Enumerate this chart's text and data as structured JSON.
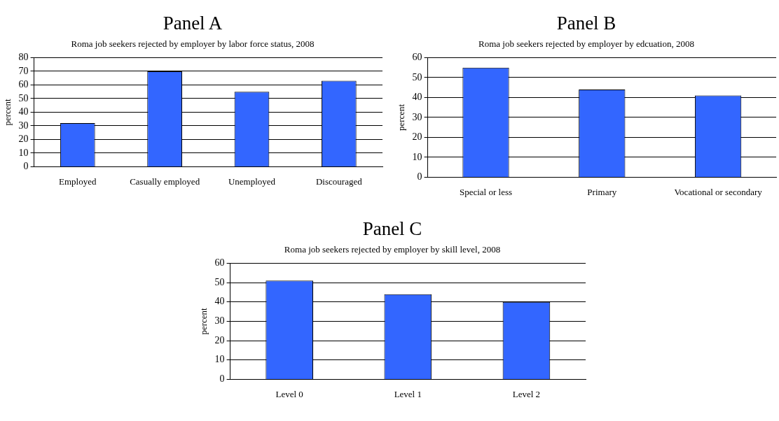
{
  "chart_data": [
    {
      "type": "bar",
      "title": "Panel A",
      "subtitle": "Roma job seekers rejected by employer by labor force status, 2008",
      "ylabel": "percent",
      "categories": [
        "Employed",
        "Casually employed",
        "Unemployed",
        "Discouraged"
      ],
      "values": [
        32,
        70,
        55,
        63
      ],
      "color": "#3366ff",
      "ylim": [
        0,
        80
      ],
      "yticks": [
        0,
        10,
        20,
        30,
        40,
        50,
        60,
        70,
        80
      ],
      "grid": "y"
    },
    {
      "type": "bar",
      "title": "Panel B",
      "subtitle": "Roma job seekers rejected by employer by edcuation, 2008",
      "ylabel": "percent",
      "categories": [
        "Special or less",
        "Primary",
        "Vocational or secondary"
      ],
      "values": [
        55,
        44,
        41
      ],
      "color": "#3366ff",
      "ylim": [
        0,
        60
      ],
      "yticks": [
        0,
        10,
        20,
        30,
        40,
        50,
        60
      ],
      "grid": "y"
    },
    {
      "type": "bar",
      "title": "Panel C",
      "subtitle": "Roma job seekers rejected by employer by skill level, 2008",
      "ylabel": "percent",
      "categories": [
        "Level 0",
        "Level 1",
        "Level 2"
      ],
      "values": [
        51,
        44,
        40
      ],
      "color": "#3366ff",
      "ylim": [
        0,
        60
      ],
      "yticks": [
        0,
        10,
        20,
        30,
        40,
        50,
        60
      ],
      "grid": "y"
    }
  ]
}
